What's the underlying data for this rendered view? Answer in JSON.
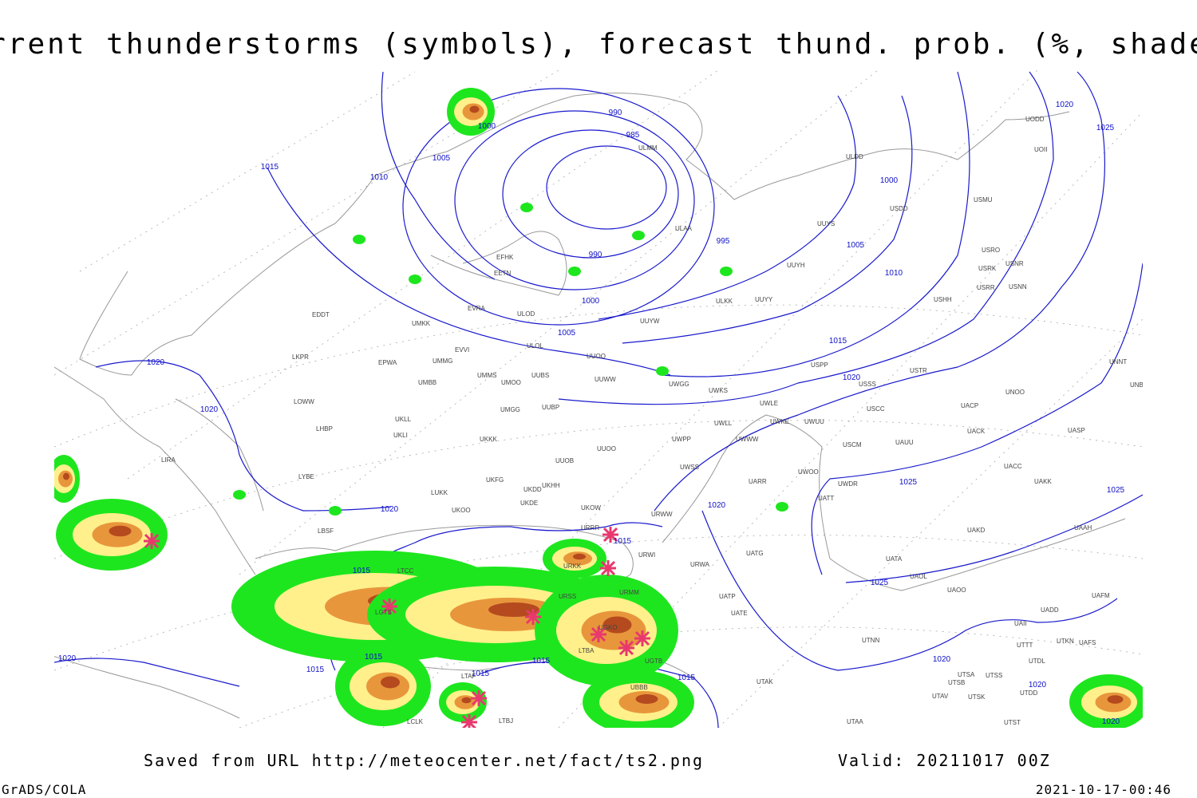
{
  "title": "Current thunderstorms (symbols), forecast thund. prob. (%, shaded)",
  "footer": {
    "saved": "Saved from URL http://meteocenter.net/fact/ts2.png",
    "valid": "Valid: 20211017 00Z",
    "software": "GrADS/COLA",
    "timestamp": "2021-10-17-00:46"
  },
  "isobar_labels": [
    "1000",
    "1005",
    "1010",
    "1015",
    "990",
    "985",
    "995",
    "990",
    "1000",
    "1005",
    "1000",
    "1005",
    "1010",
    "1015",
    "1020",
    "1020",
    "1025",
    "1020",
    "1020",
    "1020",
    "1015",
    "1015",
    "1015",
    "1015",
    "1015",
    "1015",
    "1015",
    "1020",
    "1020",
    "1025",
    "1025",
    "1025",
    "1020",
    "1020",
    "1020"
  ],
  "stations": [
    "ULMM",
    "ULDD",
    "UODD",
    "UOII",
    "USDD",
    "USMU",
    "UUYS",
    "ULAA",
    "EFHK",
    "EETN",
    "UUYH",
    "USRO",
    "USRK",
    "USNR",
    "USRR",
    "USNN",
    "ULKK",
    "UUYY",
    "USHH",
    "EVRA",
    "ULOD",
    "UUYW",
    "EDDT",
    "UMKK",
    "ULOL",
    "UUOO",
    "EVVI",
    "UMMG",
    "EPWA",
    "LKPR",
    "UMBB",
    "UMMS",
    "UMOO",
    "UUBS",
    "UUWW",
    "UWGG",
    "UWKS",
    "USPP",
    "USSS",
    "USTR",
    "UNOO",
    "UNBB",
    "UNNT",
    "LOWW",
    "LHBP",
    "UKLL",
    "UKLI",
    "UMGG",
    "UUBP",
    "UWLE",
    "UWKE",
    "UWUU",
    "USCC",
    "UACP",
    "UWLL",
    "UWWW",
    "USCM",
    "UAUU",
    "UACK",
    "UASP",
    "UKKK",
    "UUOO",
    "LIRA",
    "LYBE",
    "UUOB",
    "UWPP",
    "UKFG",
    "UKDD",
    "UKHH",
    "UWSS",
    "UARR",
    "UWOO",
    "UWDR",
    "UACC",
    "UAKK",
    "LUKK",
    "UKOO",
    "UKDE",
    "UKOW",
    "URRR",
    "URWW",
    "UATT",
    "UAKD",
    "UAAH",
    "LBSF",
    "URSS",
    "URWI",
    "UATG",
    "UATA",
    "UAOL",
    "UAOO",
    "URMM",
    "URWA",
    "UATP",
    "UATE",
    "UAFM",
    "UADD",
    "LGTS",
    "LTBA",
    "URKK",
    "UGKO",
    "UTAK",
    "UTNN",
    "UTAA",
    "UTSA",
    "UTSS",
    "UTSB",
    "UTAV",
    "UTSK",
    "UTDD",
    "UTST",
    "UTDL",
    "UAII",
    "UTTT",
    "UTKN",
    "UAFS",
    "LTCC",
    "UGTB",
    "UBBB",
    "LCLK",
    "LTAF",
    "LTBJ"
  ]
}
